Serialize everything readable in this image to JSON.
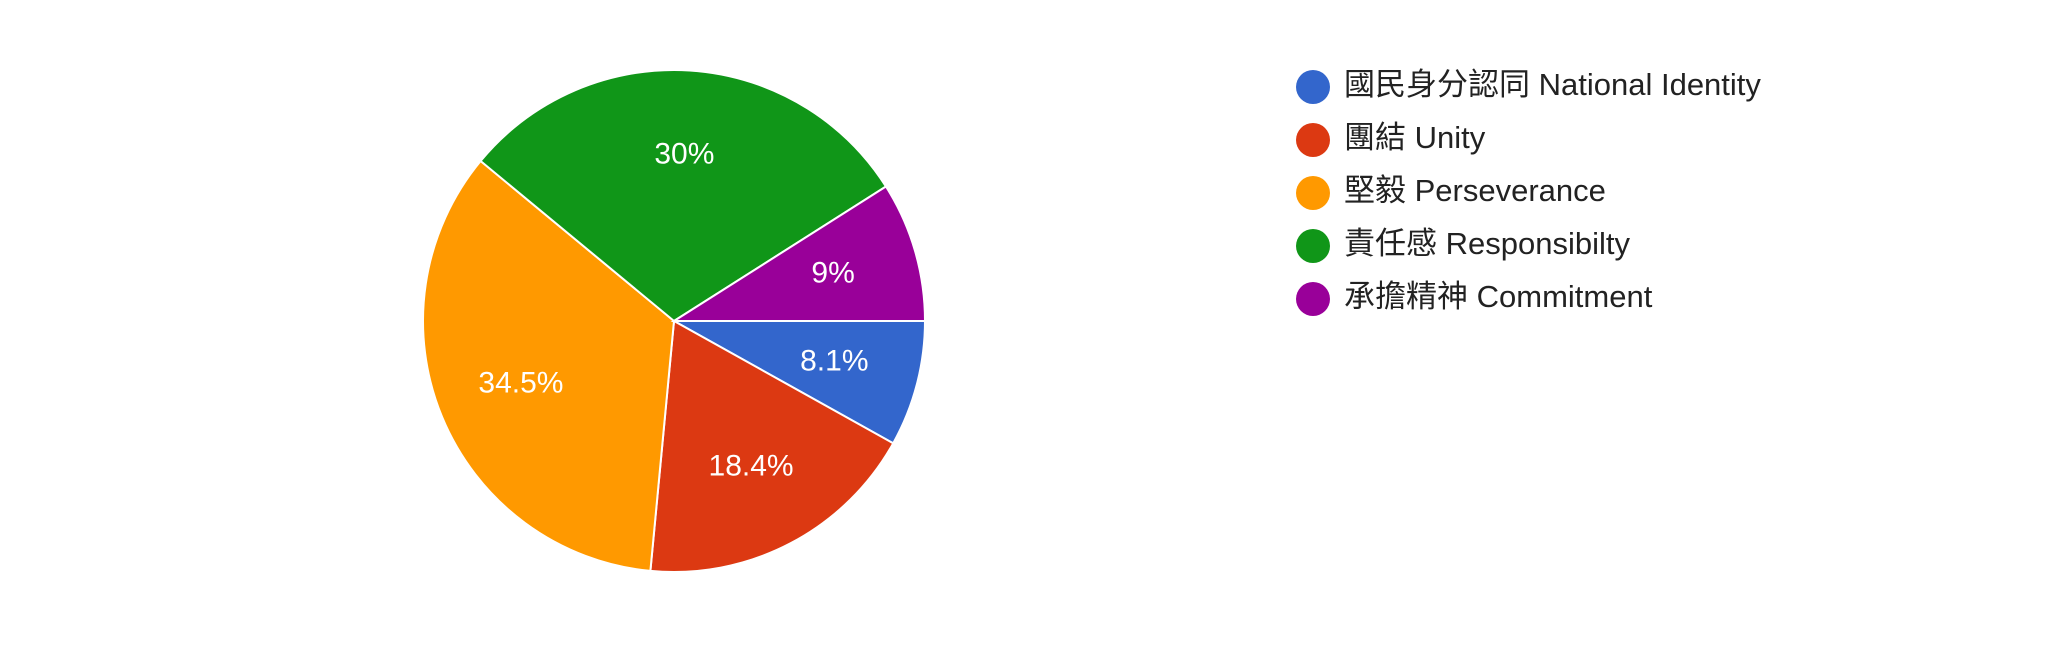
{
  "chart_data": {
    "type": "pie",
    "categories": [
      "國民身分認同 National Identity",
      "團結 Unity",
      "堅毅 Perseverance",
      "責任感 Responsibilty",
      "承擔精神 Commitment"
    ],
    "values": [
      8.1,
      18.4,
      34.5,
      30,
      9
    ],
    "value_labels": [
      "8.1%",
      "18.4%",
      "34.5%",
      "30%",
      "9%"
    ],
    "colors": [
      "#3366cc",
      "#dc3912",
      "#ff9900",
      "#109618",
      "#990099"
    ],
    "legend": "right"
  }
}
